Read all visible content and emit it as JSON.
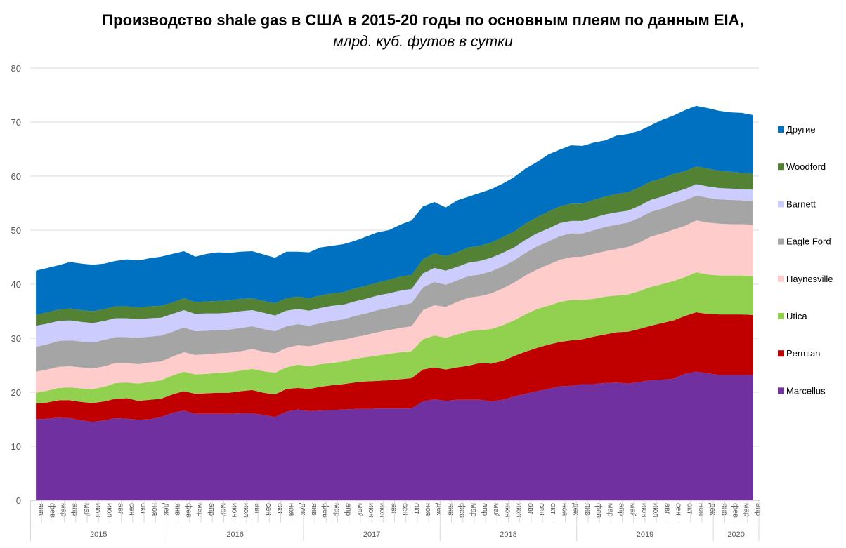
{
  "chart_data": {
    "type": "area",
    "stacked": true,
    "title": "Производство shale gas в США в 2015-20 годы по основным плеям по данным EIA,",
    "subtitle": "млрд. куб. футов в сутки",
    "xlabel": "",
    "ylabel": "",
    "ylim": [
      0,
      80
    ],
    "yticks": [
      0,
      10,
      20,
      30,
      40,
      50,
      60,
      70,
      80
    ],
    "grid": true,
    "legend_position": "right",
    "months": [
      "янв",
      "фев",
      "мар",
      "апр",
      "май",
      "июн",
      "июл",
      "авг",
      "сен",
      "окт",
      "ноя",
      "дек"
    ],
    "years": [
      {
        "label": "2015",
        "months": 12
      },
      {
        "label": "2016",
        "months": 12
      },
      {
        "label": "2017",
        "months": 12
      },
      {
        "label": "2018",
        "months": 12
      },
      {
        "label": "2019",
        "months": 12
      },
      {
        "label": "2020",
        "months": 4
      }
    ],
    "series": [
      {
        "name": "Marcellus",
        "color": "#7030A0",
        "values": [
          15.0,
          15.1,
          15.3,
          15.2,
          14.8,
          14.5,
          14.8,
          15.2,
          15.1,
          14.9,
          15.0,
          15.4,
          16.2,
          16.6,
          16.0,
          16.0,
          16.0,
          16.0,
          16.1,
          16.1,
          15.8,
          15.4,
          16.4,
          16.8,
          16.5,
          16.6,
          16.7,
          16.8,
          16.9,
          16.9,
          17.0,
          17.0,
          17.0,
          17.0,
          18.3,
          18.7,
          18.4,
          18.6,
          18.6,
          18.6,
          18.3,
          18.6,
          19.2,
          19.7,
          20.2,
          20.6,
          21.1,
          21.2,
          21.5,
          21.5,
          21.7,
          21.8,
          21.6,
          21.9,
          22.2,
          22.3,
          22.5,
          23.4,
          23.8,
          23.5,
          23.2,
          23.2,
          23.2,
          23.2
        ]
      },
      {
        "name": "Permian",
        "color": "#C00000",
        "values": [
          2.9,
          3.0,
          3.2,
          3.3,
          3.4,
          3.5,
          3.5,
          3.6,
          3.8,
          3.5,
          3.6,
          3.4,
          3.4,
          3.6,
          3.7,
          3.8,
          3.9,
          3.9,
          4.1,
          4.3,
          4.1,
          4.2,
          4.2,
          4.0,
          4.1,
          4.4,
          4.6,
          4.7,
          4.9,
          5.1,
          5.1,
          5.2,
          5.4,
          5.6,
          5.9,
          5.9,
          5.8,
          6.0,
          6.3,
          6.8,
          7.0,
          7.2,
          7.5,
          7.8,
          8.0,
          8.2,
          8.2,
          8.4,
          8.3,
          8.8,
          9.0,
          9.3,
          9.6,
          9.8,
          10.1,
          10.5,
          10.8,
          10.7,
          11.0,
          11.0,
          11.2,
          11.2,
          11.2,
          11.1
        ]
      },
      {
        "name": "Utica",
        "color": "#92D050",
        "values": [
          2.0,
          2.2,
          2.3,
          2.4,
          2.5,
          2.6,
          2.7,
          2.9,
          2.9,
          3.2,
          3.3,
          3.4,
          3.5,
          3.6,
          3.6,
          3.6,
          3.7,
          3.8,
          3.8,
          3.9,
          4.0,
          4.0,
          4.0,
          4.3,
          4.2,
          4.2,
          4.1,
          4.2,
          4.4,
          4.5,
          4.7,
          4.9,
          5.0,
          5.0,
          5.6,
          5.9,
          5.9,
          6.1,
          6.4,
          6.1,
          6.4,
          6.6,
          6.6,
          6.9,
          7.2,
          7.2,
          7.4,
          7.5,
          7.3,
          7.0,
          7.0,
          6.8,
          6.9,
          7.0,
          7.2,
          7.2,
          7.3,
          7.2,
          7.4,
          7.3,
          7.2,
          7.2,
          7.2,
          7.2
        ]
      },
      {
        "name": "Haynesville",
        "color": "#FFCCCC",
        "values": [
          3.9,
          3.9,
          3.9,
          3.9,
          3.9,
          3.8,
          3.8,
          3.7,
          3.6,
          3.6,
          3.6,
          3.5,
          3.5,
          3.6,
          3.6,
          3.6,
          3.6,
          3.6,
          3.6,
          3.7,
          3.6,
          3.6,
          3.6,
          3.6,
          3.7,
          3.8,
          4.0,
          4.0,
          4.0,
          4.1,
          4.3,
          4.4,
          4.5,
          4.6,
          5.4,
          5.6,
          5.7,
          6.0,
          6.2,
          6.3,
          6.6,
          6.8,
          7.0,
          7.2,
          7.3,
          7.6,
          7.8,
          7.9,
          8.0,
          8.3,
          8.4,
          8.6,
          8.8,
          9.0,
          9.3,
          9.4,
          9.5,
          9.5,
          9.6,
          9.6,
          9.6,
          9.5,
          9.5,
          9.5
        ]
      },
      {
        "name": "Eagle Ford",
        "color": "#A5A5A5",
        "values": [
          4.6,
          4.7,
          4.8,
          4.8,
          4.8,
          4.8,
          4.9,
          4.8,
          4.8,
          4.9,
          4.8,
          4.8,
          4.6,
          4.6,
          4.4,
          4.4,
          4.3,
          4.3,
          4.3,
          4.2,
          4.2,
          4.1,
          4.0,
          3.9,
          3.8,
          3.8,
          3.8,
          3.8,
          3.9,
          4.0,
          4.1,
          4.1,
          4.2,
          4.3,
          4.2,
          4.3,
          4.1,
          4.0,
          4.0,
          4.0,
          4.1,
          4.1,
          4.1,
          4.2,
          4.3,
          4.3,
          4.4,
          4.4,
          4.3,
          4.4,
          4.5,
          4.5,
          4.5,
          4.6,
          4.6,
          4.6,
          4.7,
          4.7,
          4.6,
          4.6,
          4.5,
          4.5,
          4.4,
          4.4
        ]
      },
      {
        "name": "Barnett",
        "color": "#CCCCFF",
        "values": [
          3.9,
          3.8,
          3.7,
          3.7,
          3.6,
          3.6,
          3.5,
          3.5,
          3.5,
          3.4,
          3.4,
          3.3,
          3.3,
          3.2,
          3.2,
          3.2,
          3.1,
          3.1,
          3.1,
          3.0,
          3.0,
          2.9,
          2.9,
          2.8,
          2.8,
          2.8,
          2.8,
          2.7,
          2.7,
          2.7,
          2.7,
          2.7,
          2.7,
          2.6,
          2.6,
          2.6,
          2.6,
          2.5,
          2.5,
          2.5,
          2.5,
          2.5,
          2.4,
          2.4,
          2.4,
          2.4,
          2.4,
          2.3,
          2.3,
          2.3,
          2.3,
          2.3,
          2.2,
          2.2,
          2.2,
          2.2,
          2.2,
          2.1,
          2.1,
          2.1,
          2.1,
          2.1,
          2.1,
          2.1
        ]
      },
      {
        "name": "Woodford",
        "color": "#548235",
        "values": [
          2.0,
          2.1,
          2.1,
          2.2,
          2.2,
          2.2,
          2.2,
          2.2,
          2.2,
          2.2,
          2.2,
          2.2,
          2.1,
          2.2,
          2.2,
          2.2,
          2.3,
          2.3,
          2.3,
          2.2,
          2.2,
          2.3,
          2.3,
          2.3,
          2.3,
          2.3,
          2.3,
          2.3,
          2.4,
          2.4,
          2.4,
          2.5,
          2.6,
          2.6,
          2.6,
          2.7,
          2.7,
          2.7,
          2.8,
          2.8,
          2.8,
          2.9,
          2.9,
          3.0,
          3.0,
          3.1,
          3.1,
          3.2,
          3.2,
          3.3,
          3.3,
          3.4,
          3.4,
          3.4,
          3.4,
          3.4,
          3.4,
          3.3,
          3.3,
          3.3,
          3.2,
          3.1,
          3.0,
          3.0
        ]
      },
      {
        "name": "Другие",
        "color": "#0070C0",
        "values": [
          8.2,
          8.2,
          8.2,
          8.6,
          8.6,
          8.6,
          8.4,
          8.4,
          8.7,
          8.7,
          8.9,
          9.1,
          9.0,
          8.7,
          8.4,
          8.8,
          9.0,
          8.8,
          8.7,
          8.7,
          8.6,
          8.4,
          8.6,
          8.3,
          8.5,
          8.9,
          8.8,
          8.9,
          8.8,
          9.1,
          9.3,
          9.2,
          9.6,
          10.1,
          9.8,
          9.5,
          9.0,
          9.6,
          9.4,
          9.8,
          9.9,
          9.9,
          10.1,
          10.2,
          10.2,
          10.6,
          10.5,
          10.8,
          10.7,
          10.6,
          10.4,
          10.8,
          10.8,
          10.5,
          10.4,
          10.8,
          10.8,
          11.3,
          11.2,
          11.2,
          11.1,
          11.0,
          11.1,
          10.8
        ]
      }
    ]
  }
}
